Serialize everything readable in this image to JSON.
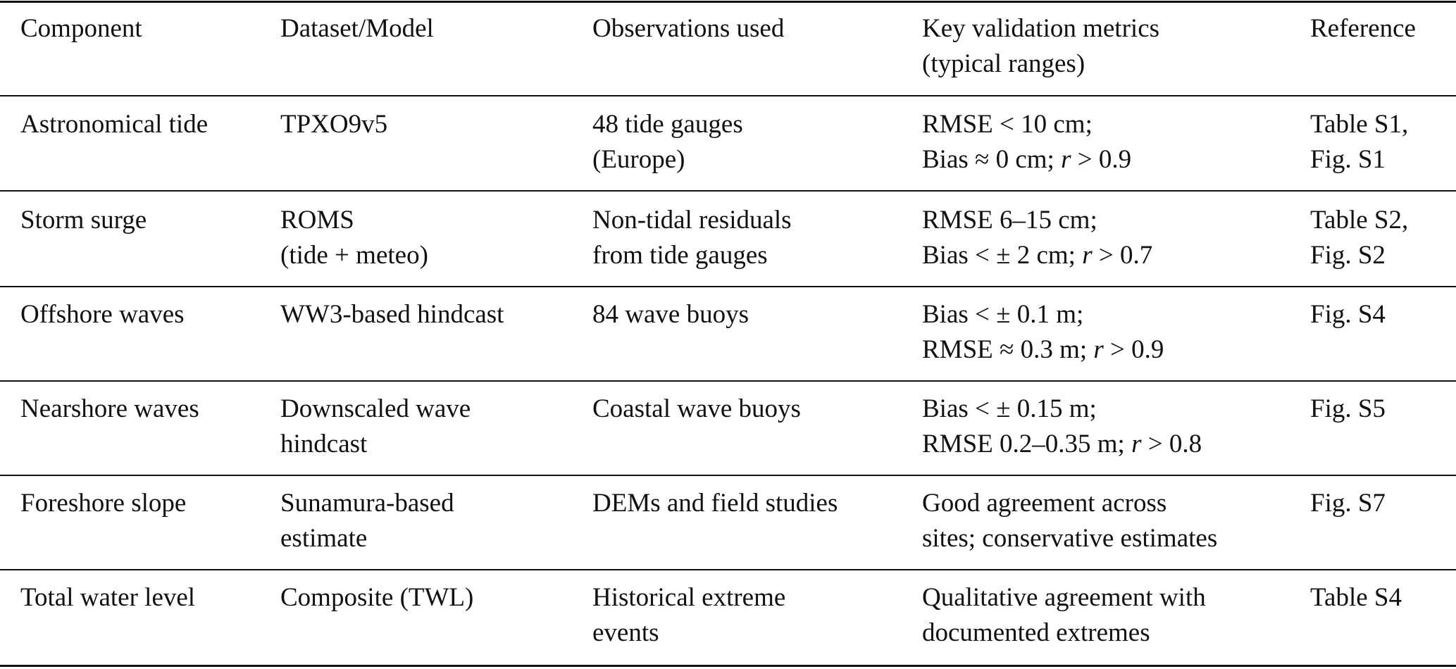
{
  "table": {
    "headers": [
      [
        "Component"
      ],
      [
        "Dataset/Model"
      ],
      [
        "Observations used"
      ],
      [
        "Key validation metrics",
        "(typical ranges)"
      ],
      [
        "Reference"
      ]
    ],
    "rows": [
      {
        "component": [
          "Astronomical tide"
        ],
        "dataset": [
          "TPXO9v5"
        ],
        "observations": [
          "48 tide gauges",
          "(Europe)"
        ],
        "metrics": [
          "RMSE < 10 cm;",
          "Bias ≈ 0 cm; r > 0.9"
        ],
        "reference": [
          "Table S1,",
          "Fig. S1"
        ]
      },
      {
        "component": [
          "Storm surge"
        ],
        "dataset": [
          "ROMS",
          "(tide + meteo)"
        ],
        "observations": [
          "Non-tidal residuals",
          "from tide gauges"
        ],
        "metrics": [
          "RMSE 6–15 cm;",
          "Bias < ± 2 cm; r > 0.7"
        ],
        "reference": [
          "Table S2,",
          "Fig. S2"
        ]
      },
      {
        "component": [
          "Offshore waves"
        ],
        "dataset": [
          "WW3-based hindcast"
        ],
        "observations": [
          "84 wave buoys"
        ],
        "metrics": [
          "Bias < ± 0.1 m;",
          "RMSE ≈ 0.3 m; r > 0.9"
        ],
        "reference": [
          "Fig. S4"
        ]
      },
      {
        "component": [
          "Nearshore waves"
        ],
        "dataset": [
          "Downscaled wave",
          "hindcast"
        ],
        "observations": [
          "Coastal wave buoys"
        ],
        "metrics": [
          "Bias < ± 0.15 m;",
          "RMSE 0.2–0.35 m; r > 0.8"
        ],
        "reference": [
          "Fig. S5"
        ]
      },
      {
        "component": [
          "Foreshore slope"
        ],
        "dataset": [
          "Sunamura-based",
          "estimate"
        ],
        "observations": [
          "DEMs and field studies"
        ],
        "metrics": [
          "Good agreement across",
          "sites; conservative estimates"
        ],
        "reference": [
          "Fig. S7"
        ]
      },
      {
        "component": [
          "Total water level"
        ],
        "dataset": [
          "Composite (TWL)"
        ],
        "observations": [
          "Historical extreme",
          "events"
        ],
        "metrics": [
          "Qualitative agreement with",
          "documented extremes"
        ],
        "reference": [
          "Table S4"
        ]
      }
    ]
  }
}
